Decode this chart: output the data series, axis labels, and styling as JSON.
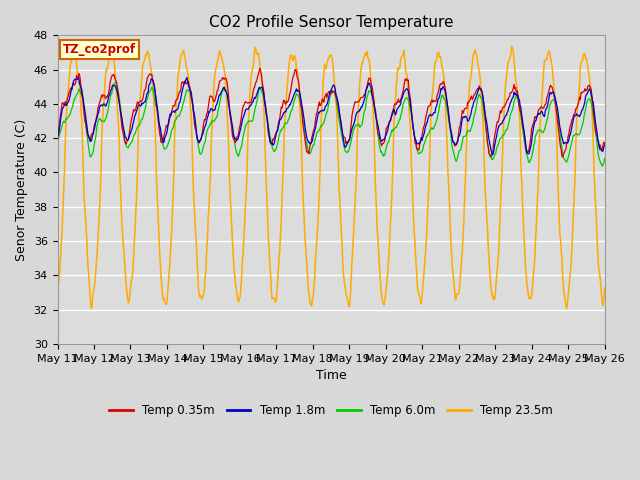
{
  "title": "CO2 Profile Sensor Temperature",
  "xlabel": "Time",
  "ylabel": "Senor Temperature (C)",
  "ylim": [
    30,
    48
  ],
  "colors": {
    "Temp 0.35m": "#dd0000",
    "Temp 1.8m": "#0000cc",
    "Temp 6.0m": "#00cc00",
    "Temp 23.5m": "#ffaa00"
  },
  "annotation_text": "TZ_co2prof",
  "annotation_color": "#cc0000",
  "annotation_bg": "#ffffcc",
  "annotation_border": "#cc6600",
  "x_tick_labels": [
    "May 11",
    "May 12",
    "May 13",
    "May 14",
    "May 15",
    "May 16",
    "May 17",
    "May 18",
    "May 19",
    "May 20",
    "May 21",
    "May 22",
    "May 23",
    "May 24",
    "May 25",
    "May 26"
  ],
  "bg_color": "#dcdcdc",
  "grid_color": "#ffffff",
  "title_fontsize": 11,
  "label_fontsize": 9,
  "tick_fontsize": 8
}
